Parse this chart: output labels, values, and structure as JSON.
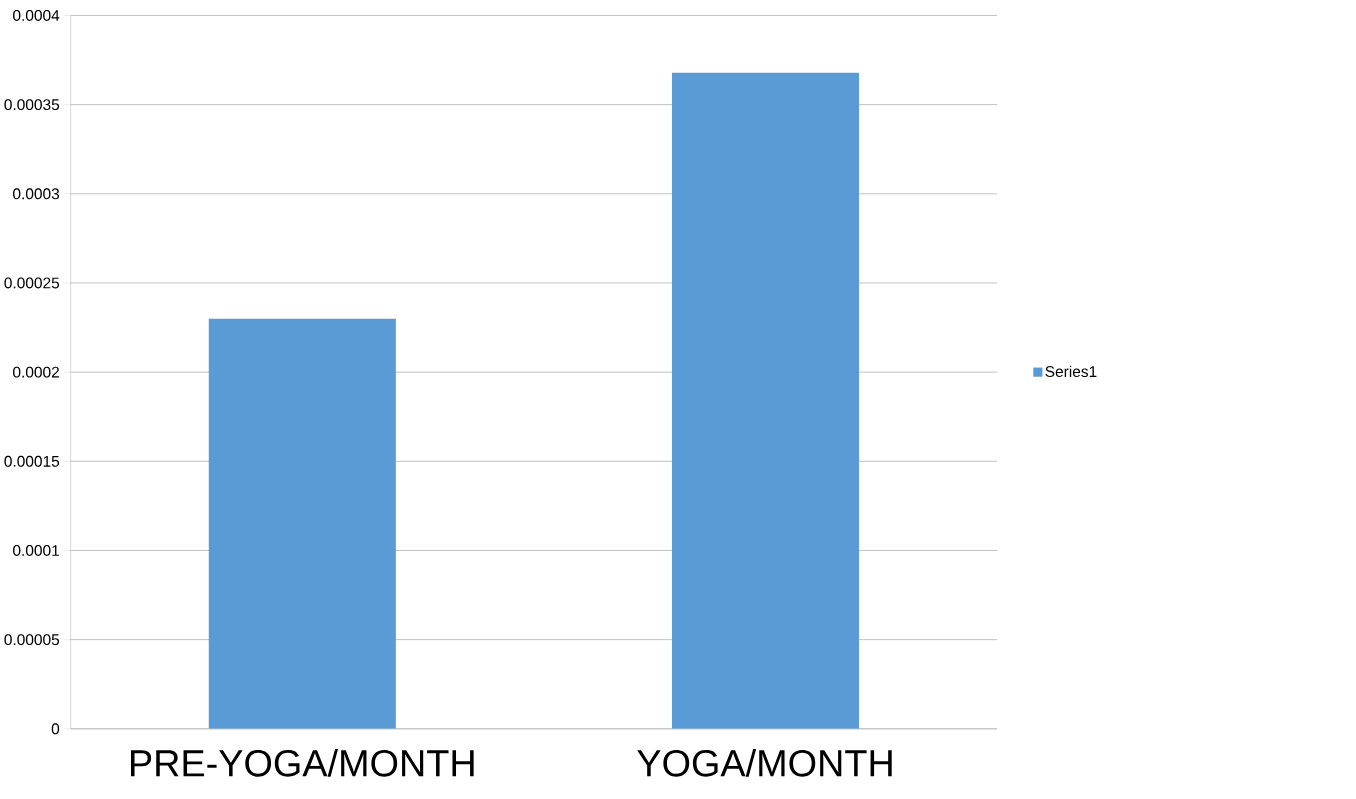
{
  "chart_data": {
    "type": "bar",
    "categories": [
      "PRE-YOGA/MONTH",
      "YOGA/MONTH"
    ],
    "series": [
      {
        "name": "Series1",
        "color": "#5b9bd5",
        "values": [
          0.00023,
          0.000368
        ]
      }
    ],
    "ylim": [
      0,
      0.0004
    ],
    "yticks": [
      {
        "value": 0,
        "label": "0"
      },
      {
        "value": 5e-05,
        "label": "0.00005"
      },
      {
        "value": 0.0001,
        "label": "0.0001"
      },
      {
        "value": 0.00015,
        "label": "0.00015"
      },
      {
        "value": 0.0002,
        "label": "0.0002"
      },
      {
        "value": 0.00025,
        "label": "0.00025"
      },
      {
        "value": 0.0003,
        "label": "0.0003"
      },
      {
        "value": 0.00035,
        "label": "0.00035"
      },
      {
        "value": 0.0004,
        "label": "0.0004"
      }
    ],
    "grid": "y",
    "legend": "right"
  }
}
